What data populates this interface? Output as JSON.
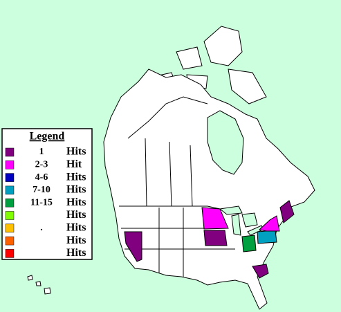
{
  "legend": {
    "title": "Legend",
    "items": [
      {
        "range": "1",
        "label": "Hits",
        "color": "#800080"
      },
      {
        "range": "2-3",
        "label": "Hit",
        "color": "#ff00ff"
      },
      {
        "range": "4-6",
        "label": "Hits",
        "color": "#0000c0"
      },
      {
        "range": "7-10",
        "label": "Hits",
        "color": "#00a0c0"
      },
      {
        "range": "11-15",
        "label": "Hits",
        "color": "#00a040"
      },
      {
        "label": "Hits",
        "color": "#80ff00"
      },
      {
        "range": ".",
        "label": "Hits",
        "color": "#ffc000"
      },
      {
        "label": "Hits",
        "color": "#ff6000"
      },
      {
        "label": "Hits",
        "color": "#ff0000"
      }
    ]
  }
}
